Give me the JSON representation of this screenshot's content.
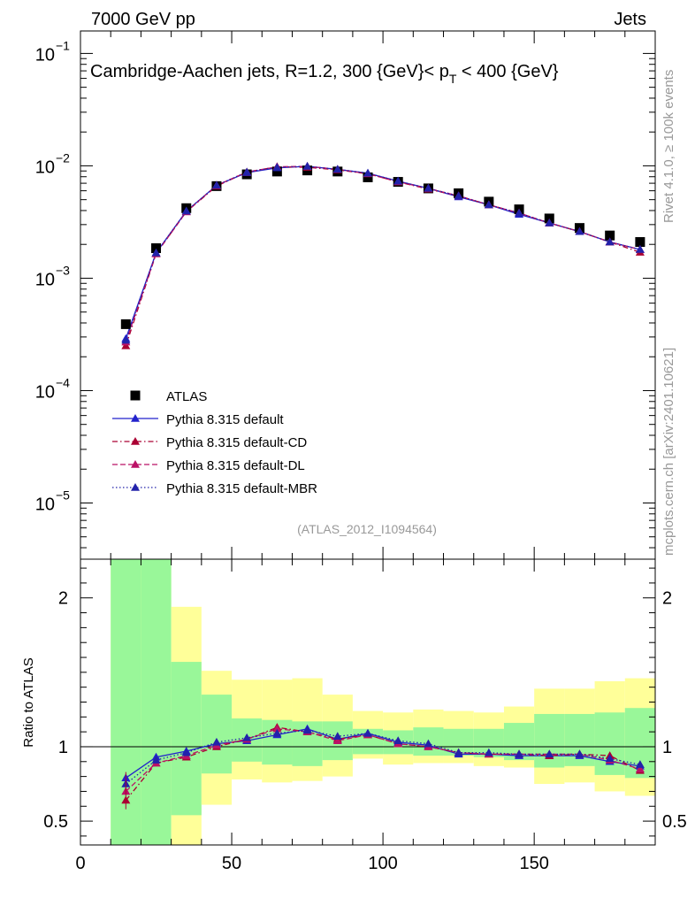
{
  "header": {
    "left": "7000 GeV pp",
    "right": "Jets"
  },
  "side_labels": {
    "rivet": "Rivet 4.1.0, ≥ 100k events",
    "mcplots": "mcplots.cern.ch [arXiv:2401.10621]"
  },
  "chart_data": [
    {
      "type": "scatter",
      "panel": "main",
      "title_main": "Cambridge-Aachen jets, R=1.2, 300 {GeV}< p",
      "title_sub": "T",
      "title_end": " < 400 {GeV}",
      "yscale": "log",
      "ylim_exp": [
        -5.5,
        -0.8
      ],
      "y_ticks": [
        {
          "base": "10",
          "exp": "−1",
          "e": -1
        },
        {
          "base": "10",
          "exp": "−2",
          "e": -2
        },
        {
          "base": "10",
          "exp": "−3",
          "e": -3
        },
        {
          "base": "10",
          "exp": "−4",
          "e": -4
        },
        {
          "base": "10",
          "exp": "−5",
          "e": -5
        }
      ],
      "xlim": [
        0,
        190
      ],
      "x": [
        15,
        25,
        35,
        45,
        55,
        65,
        75,
        85,
        95,
        105,
        115,
        125,
        135,
        145,
        155,
        165,
        175,
        185
      ],
      "series": [
        {
          "name": "ATLAS",
          "marker": "square",
          "color": "#000000",
          "values": [
            0.00039,
            0.00185,
            0.0042,
            0.0066,
            0.0084,
            0.0089,
            0.0091,
            0.0089,
            0.0079,
            0.0072,
            0.0063,
            0.0057,
            0.0048,
            0.0041,
            0.0034,
            0.0028,
            0.0024,
            0.0021
          ]
        },
        {
          "name": "Pythia 8.315 default",
          "marker": "triangle",
          "color": "#2222cc",
          "line": "solid",
          "values": [
            0.00029,
            0.00168,
            0.00395,
            0.0067,
            0.0087,
            0.0096,
            0.0099,
            0.0093,
            0.0086,
            0.0073,
            0.0063,
            0.0053,
            0.0045,
            0.0037,
            0.0031,
            0.0026,
            0.0021,
            0.0018
          ]
        },
        {
          "name": "Pythia 8.315 default-CD",
          "marker": "triangle",
          "color": "#aa0033",
          "line": "dashdot",
          "values": [
            0.00025,
            0.00165,
            0.0039,
            0.0066,
            0.0088,
            0.0098,
            0.0097,
            0.0092,
            0.0085,
            0.0072,
            0.0062,
            0.0054,
            0.0045,
            0.0038,
            0.0031,
            0.0026,
            0.0021,
            0.0017
          ]
        },
        {
          "name": "Pythia 8.315 default-DL",
          "marker": "triangle",
          "color": "#bb1166",
          "line": "dashed",
          "values": [
            0.00027,
            0.00165,
            0.0039,
            0.0067,
            0.0088,
            0.0098,
            0.0099,
            0.0093,
            0.0085,
            0.0072,
            0.0063,
            0.0054,
            0.0045,
            0.0038,
            0.0031,
            0.0026,
            0.0021,
            0.0018
          ]
        },
        {
          "name": "Pythia 8.315 default-MBR",
          "marker": "triangle",
          "color": "#2222aa",
          "line": "dotted",
          "values": [
            0.00028,
            0.00168,
            0.00395,
            0.0067,
            0.0088,
            0.0097,
            0.0099,
            0.0093,
            0.0086,
            0.0073,
            0.0063,
            0.0054,
            0.0045,
            0.0038,
            0.0031,
            0.0026,
            0.0021,
            0.0018
          ]
        }
      ],
      "watermark": "(ATLAS_2012_I1094564)",
      "legend_position": "lower-left"
    },
    {
      "type": "line",
      "panel": "ratio",
      "ylabel": "Ratio to ATLAS",
      "ylim": [
        0.34,
        2.26
      ],
      "y_ticks": [
        {
          "value": 0.5,
          "label": "0.5"
        },
        {
          "value": 1,
          "label": "1"
        },
        {
          "value": 2,
          "label": "2"
        }
      ],
      "xlim": [
        0,
        190
      ],
      "x_ticks": [
        {
          "value": 0,
          "label": "0"
        },
        {
          "value": 50,
          "label": "50"
        },
        {
          "value": 100,
          "label": "100"
        },
        {
          "value": 150,
          "label": "150"
        }
      ],
      "bands": {
        "bin_edges": [
          10,
          20,
          30,
          40,
          50,
          60,
          70,
          80,
          90,
          100,
          110,
          120,
          130,
          140,
          150,
          160,
          170,
          180,
          190
        ],
        "yellow_low": [
          0.34,
          0.34,
          0.34,
          0.61,
          0.78,
          0.76,
          0.77,
          0.8,
          0.92,
          0.88,
          0.89,
          0.89,
          0.87,
          0.86,
          0.75,
          0.76,
          0.7,
          0.67
        ],
        "yellow_high": [
          2.26,
          2.26,
          1.94,
          1.51,
          1.45,
          1.45,
          1.46,
          1.35,
          1.24,
          1.23,
          1.25,
          1.24,
          1.23,
          1.27,
          1.39,
          1.39,
          1.44,
          1.46
        ],
        "green_low": [
          0.34,
          0.34,
          0.54,
          0.82,
          0.9,
          0.88,
          0.87,
          0.91,
          0.95,
          0.95,
          0.94,
          0.94,
          0.93,
          0.91,
          0.86,
          0.87,
          0.81,
          0.79
        ],
        "green_high": [
          2.26,
          2.26,
          1.57,
          1.35,
          1.19,
          1.18,
          1.17,
          1.17,
          1.12,
          1.11,
          1.13,
          1.12,
          1.12,
          1.16,
          1.22,
          1.22,
          1.23,
          1.26
        ]
      },
      "series": [
        {
          "name": "Pythia 8.315 default",
          "color": "#2222cc",
          "line": "solid",
          "values": [
            0.79,
            0.93,
            0.97,
            1.02,
            1.04,
            1.08,
            1.12,
            1.05,
            1.09,
            1.03,
            1.01,
            0.95,
            0.95,
            0.94,
            0.94,
            0.94,
            0.9,
            0.87
          ]
        },
        {
          "name": "Pythia 8.315 default-CD",
          "color": "#aa0033",
          "line": "dashdot",
          "values": [
            0.64,
            0.89,
            0.93,
            1.0,
            1.05,
            1.13,
            1.1,
            1.05,
            1.08,
            1.02,
            1.0,
            0.96,
            0.95,
            0.95,
            0.94,
            0.95,
            0.94,
            0.84
          ]
        },
        {
          "name": "Pythia 8.315 default-DL",
          "color": "#bb1166",
          "line": "dashed",
          "values": [
            0.7,
            0.89,
            0.94,
            1.01,
            1.05,
            1.12,
            1.1,
            1.04,
            1.08,
            1.02,
            1.0,
            0.96,
            0.95,
            0.95,
            0.95,
            0.95,
            0.91,
            0.85
          ]
        },
        {
          "name": "Pythia 8.315 default-MBR",
          "color": "#2222aa",
          "line": "dotted",
          "values": [
            0.75,
            0.91,
            0.96,
            1.03,
            1.06,
            1.09,
            1.11,
            1.07,
            1.09,
            1.04,
            1.02,
            0.96,
            0.96,
            0.95,
            0.95,
            0.95,
            0.92,
            0.88
          ]
        }
      ]
    }
  ]
}
